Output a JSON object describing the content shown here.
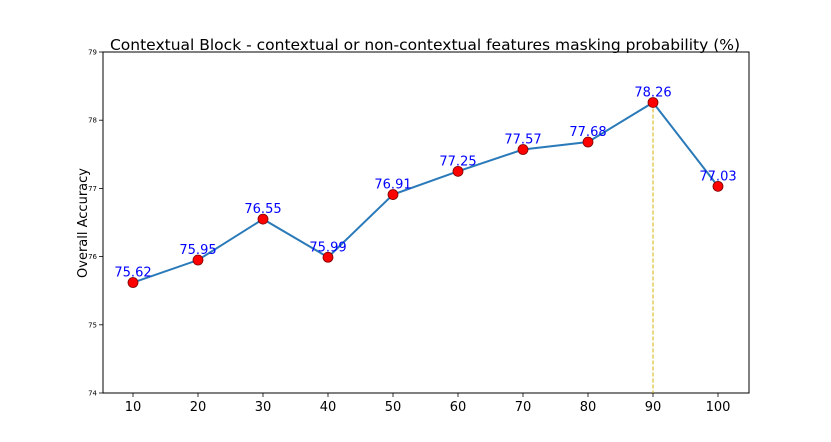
{
  "chart_data": {
    "type": "line",
    "title": "Contextual Block - contextual or non-contextual features masking probability (%)",
    "xlabel": "",
    "ylabel": "Overall Accuracy",
    "x": [
      10,
      20,
      30,
      40,
      50,
      60,
      70,
      80,
      90,
      100
    ],
    "x_tick_labels": [
      "10",
      "20",
      "30",
      "40",
      "50",
      "60",
      "70",
      "80",
      "90",
      "100"
    ],
    "values": [
      75.62,
      75.95,
      76.55,
      75.99,
      76.91,
      77.25,
      77.57,
      77.68,
      78.26,
      77.03
    ],
    "data_labels": [
      "75.62",
      "75.95",
      "76.55",
      "75.99",
      "76.91",
      "77.25",
      "77.57",
      "77.68",
      "78.26",
      "77.03"
    ],
    "y_tick_labels": [
      "74",
      "75",
      "76",
      "77",
      "78",
      "79"
    ],
    "ylim": [
      74,
      79
    ],
    "y_ticks": [
      74,
      75,
      76,
      77,
      78,
      79
    ],
    "grid": false,
    "highlight_x": 90,
    "colors": {
      "line": "#2a7ab9",
      "marker_fill": "#ff0000",
      "marker_edge": "#7a0000",
      "data_label": "#0000ff",
      "highlight_line": "#d4b106"
    }
  }
}
